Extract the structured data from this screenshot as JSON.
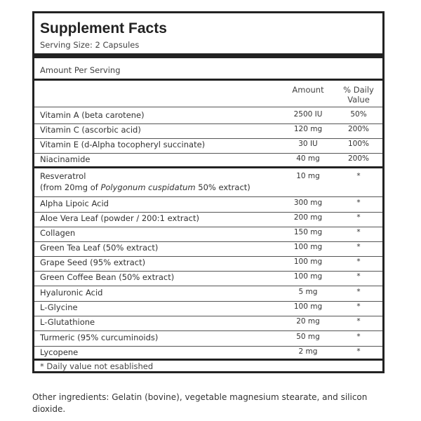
{
  "label": {
    "title": "Supplement Facts",
    "serving_size": "Serving Size: 2 Capsules",
    "amount_per_serving": "Amount Per Serving",
    "col_amount": "Amount",
    "col_daily_value_line1": "% Daily",
    "col_daily_value_line2": "Value",
    "vitamins": [
      {
        "name": "Vitamin A (beta carotene)",
        "amount": "2500 IU",
        "dv": "50%"
      },
      {
        "name": "Vitamin C (ascorbic acid)",
        "amount": "120 mg",
        "dv": "200%"
      },
      {
        "name": "Vitamin E (d-Alpha tocopheryl succinate)",
        "amount": "30 IU",
        "dv": "100%"
      },
      {
        "name": "Niacinamide",
        "amount": "40 mg",
        "dv": "200%"
      }
    ],
    "resveratrol": {
      "name": "Resveratrol",
      "source_prefix": "(from 20mg of ",
      "source_species": "Polygonum cuspidatum",
      "source_suffix": " 50% extract)",
      "amount": "10 mg",
      "dv": "*"
    },
    "others": [
      {
        "name": "Alpha Lipoic Acid",
        "amount": "300 mg",
        "dv": "*"
      },
      {
        "name": "Aloe Vera Leaf (powder / 200:1 extract)",
        "amount": "200 mg",
        "dv": "*"
      },
      {
        "name": "Collagen",
        "amount": "150 mg",
        "dv": "*"
      },
      {
        "name": "Green Tea Leaf (50% extract)",
        "amount": "100 mg",
        "dv": "*"
      },
      {
        "name": "Grape Seed (95% extract)",
        "amount": "100 mg",
        "dv": "*"
      },
      {
        "name": "Green Coffee Bean (50% extract)",
        "amount": "100 mg",
        "dv": "*"
      },
      {
        "name": "Hyaluronic Acid",
        "amount": "5 mg",
        "dv": "*"
      },
      {
        "name": "L-Glycine",
        "amount": "100 mg",
        "dv": "*"
      },
      {
        "name": "L-Glutathione",
        "amount": "20 mg",
        "dv": "*"
      },
      {
        "name": "Turmeric (95% curcuminoids)",
        "amount": "50 mg",
        "dv": "*"
      },
      {
        "name": "Lycopene",
        "amount": "2 mg",
        "dv": "*"
      }
    ],
    "footnote": "* Daily value not esablished"
  },
  "other_ingredients": "Other ingredients: Gelatin (bovine), vegetable magnesium stearate, and silicon dioxide."
}
